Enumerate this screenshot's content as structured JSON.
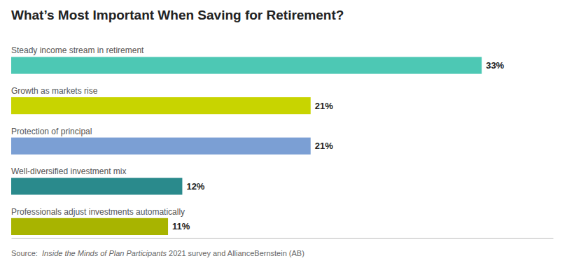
{
  "chart_data": {
    "type": "bar",
    "orientation": "horizontal",
    "title": "What’s Most Important When Saving for Retirement?",
    "categories": [
      "Steady income stream in retirement",
      "Growth as markets rise",
      "Protection of principal",
      "Well-diversified investment mix",
      "Professionals adjust investments automatically"
    ],
    "values": [
      33,
      21,
      21,
      12,
      11
    ],
    "value_labels": [
      "33%",
      "21%",
      "21%",
      "12%",
      "11%"
    ],
    "colors": [
      "#4DC8B4",
      "#C8D400",
      "#7B9FD4",
      "#2A8A8C",
      "#A8B400"
    ],
    "xlim": [
      0,
      38
    ],
    "data_labels": true,
    "tick_labels": false,
    "grid": false,
    "annotations": [
      "Source:  ",
      "Inside the Minds of Plan Participants",
      " 2021 survey and AllianceBernstein (AB)"
    ]
  }
}
